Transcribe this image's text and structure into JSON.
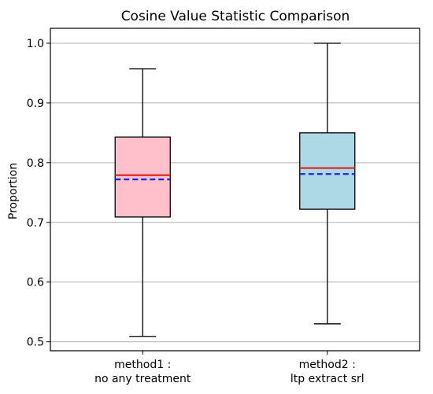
{
  "chart_data": {
    "type": "box",
    "title": "Cosine Value Statistic Comparison",
    "xlabel": "",
    "ylabel": "Proportion",
    "ylim": [
      0.485,
      1.025
    ],
    "yticks": [
      0.5,
      0.6,
      0.7,
      0.8,
      0.9,
      1.0
    ],
    "ytick_labels": [
      "0.5",
      "0.6",
      "0.7",
      "0.8",
      "0.9",
      "1.0"
    ],
    "grid": "horizontal",
    "median_color": "#e8251f",
    "mean_color": "#1f1fe8",
    "boxes": [
      {
        "label_line1": "method1 :",
        "label_line2": "no any treatment",
        "color": "#ffc0cb",
        "whisker_low": 0.509,
        "q1": 0.709,
        "median": 0.779,
        "mean": 0.772,
        "q3": 0.843,
        "whisker_high": 0.957
      },
      {
        "label_line1": "method2 :",
        "label_line2": "ltp extract srl",
        "color": "#add8e6",
        "whisker_low": 0.53,
        "q1": 0.722,
        "median": 0.791,
        "mean": 0.781,
        "q3": 0.85,
        "whisker_high": 1.0
      }
    ]
  }
}
